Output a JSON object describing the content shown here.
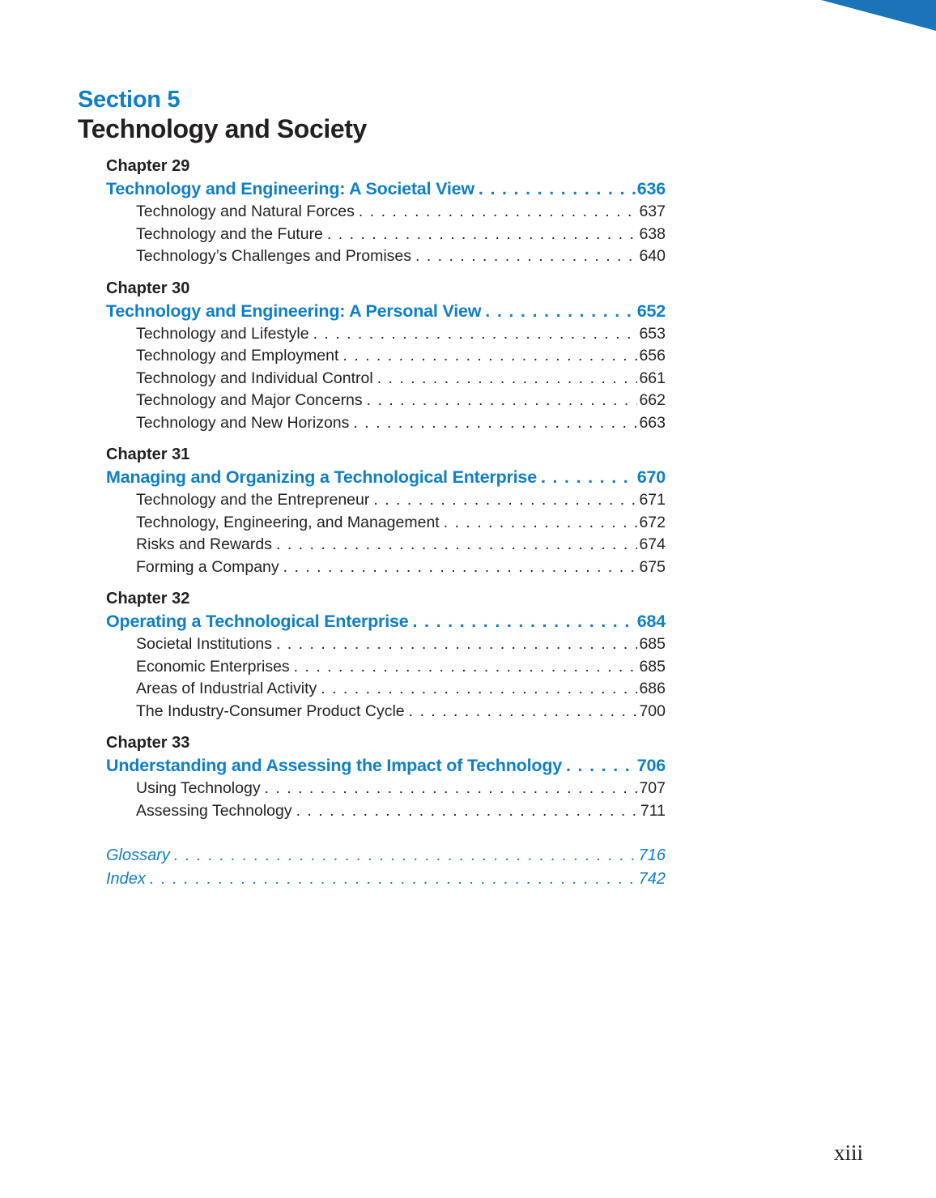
{
  "header": {
    "section_label": "Section 5",
    "section_title": "Technology and Society"
  },
  "colors": {
    "accent_blue": "#0f7fc6",
    "corner_triangle_blue": "#1b74b8",
    "text_black": "#231f20"
  },
  "chapters": [
    {
      "chapter_label": "Chapter 29",
      "title": "Technology and Engineering: A Societal View",
      "page": "636",
      "items": [
        {
          "label": "Technology and Natural Forces",
          "page": "637"
        },
        {
          "label": "Technology and the Future",
          "page": "638"
        },
        {
          "label": "Technology’s Challenges and Promises",
          "page": "640"
        }
      ]
    },
    {
      "chapter_label": "Chapter 30",
      "title": "Technology and Engineering: A Personal View",
      "page": "652",
      "items": [
        {
          "label": "Technology and Lifestyle",
          "page": "653"
        },
        {
          "label": "Technology and Employment",
          "page": "656"
        },
        {
          "label": "Technology and Individual Control",
          "page": "661"
        },
        {
          "label": "Technology and Major Concerns",
          "page": "662"
        },
        {
          "label": "Technology and New Horizons",
          "page": "663"
        }
      ]
    },
    {
      "chapter_label": "Chapter 31",
      "title": "Managing and Organizing a Technological Enterprise",
      "page": "670",
      "items": [
        {
          "label": "Technology and the Entrepreneur",
          "page": "671"
        },
        {
          "label": "Technology, Engineering, and Management",
          "page": "672"
        },
        {
          "label": "Risks and Rewards",
          "page": "674"
        },
        {
          "label": "Forming a Company",
          "page": "675"
        }
      ]
    },
    {
      "chapter_label": "Chapter 32",
      "title": "Operating a Technological Enterprise",
      "page": "684",
      "items": [
        {
          "label": "Societal Institutions",
          "page": "685"
        },
        {
          "label": "Economic Enterprises",
          "page": "685"
        },
        {
          "label": "Areas of Industrial Activity",
          "page": "686"
        },
        {
          "label": "The Industry-Consumer Product Cycle",
          "page": "700"
        }
      ]
    },
    {
      "chapter_label": "Chapter 33",
      "title": "Understanding and Assessing the Impact of Technology",
      "page": "706",
      "items": [
        {
          "label": "Using Technology",
          "page": "707"
        },
        {
          "label": "Assessing Technology",
          "page": "711"
        }
      ]
    }
  ],
  "back_matter": [
    {
      "label": "Glossary",
      "page": "716"
    },
    {
      "label": "Index",
      "page": "742"
    }
  ],
  "footer": {
    "page_number": "xiii"
  }
}
